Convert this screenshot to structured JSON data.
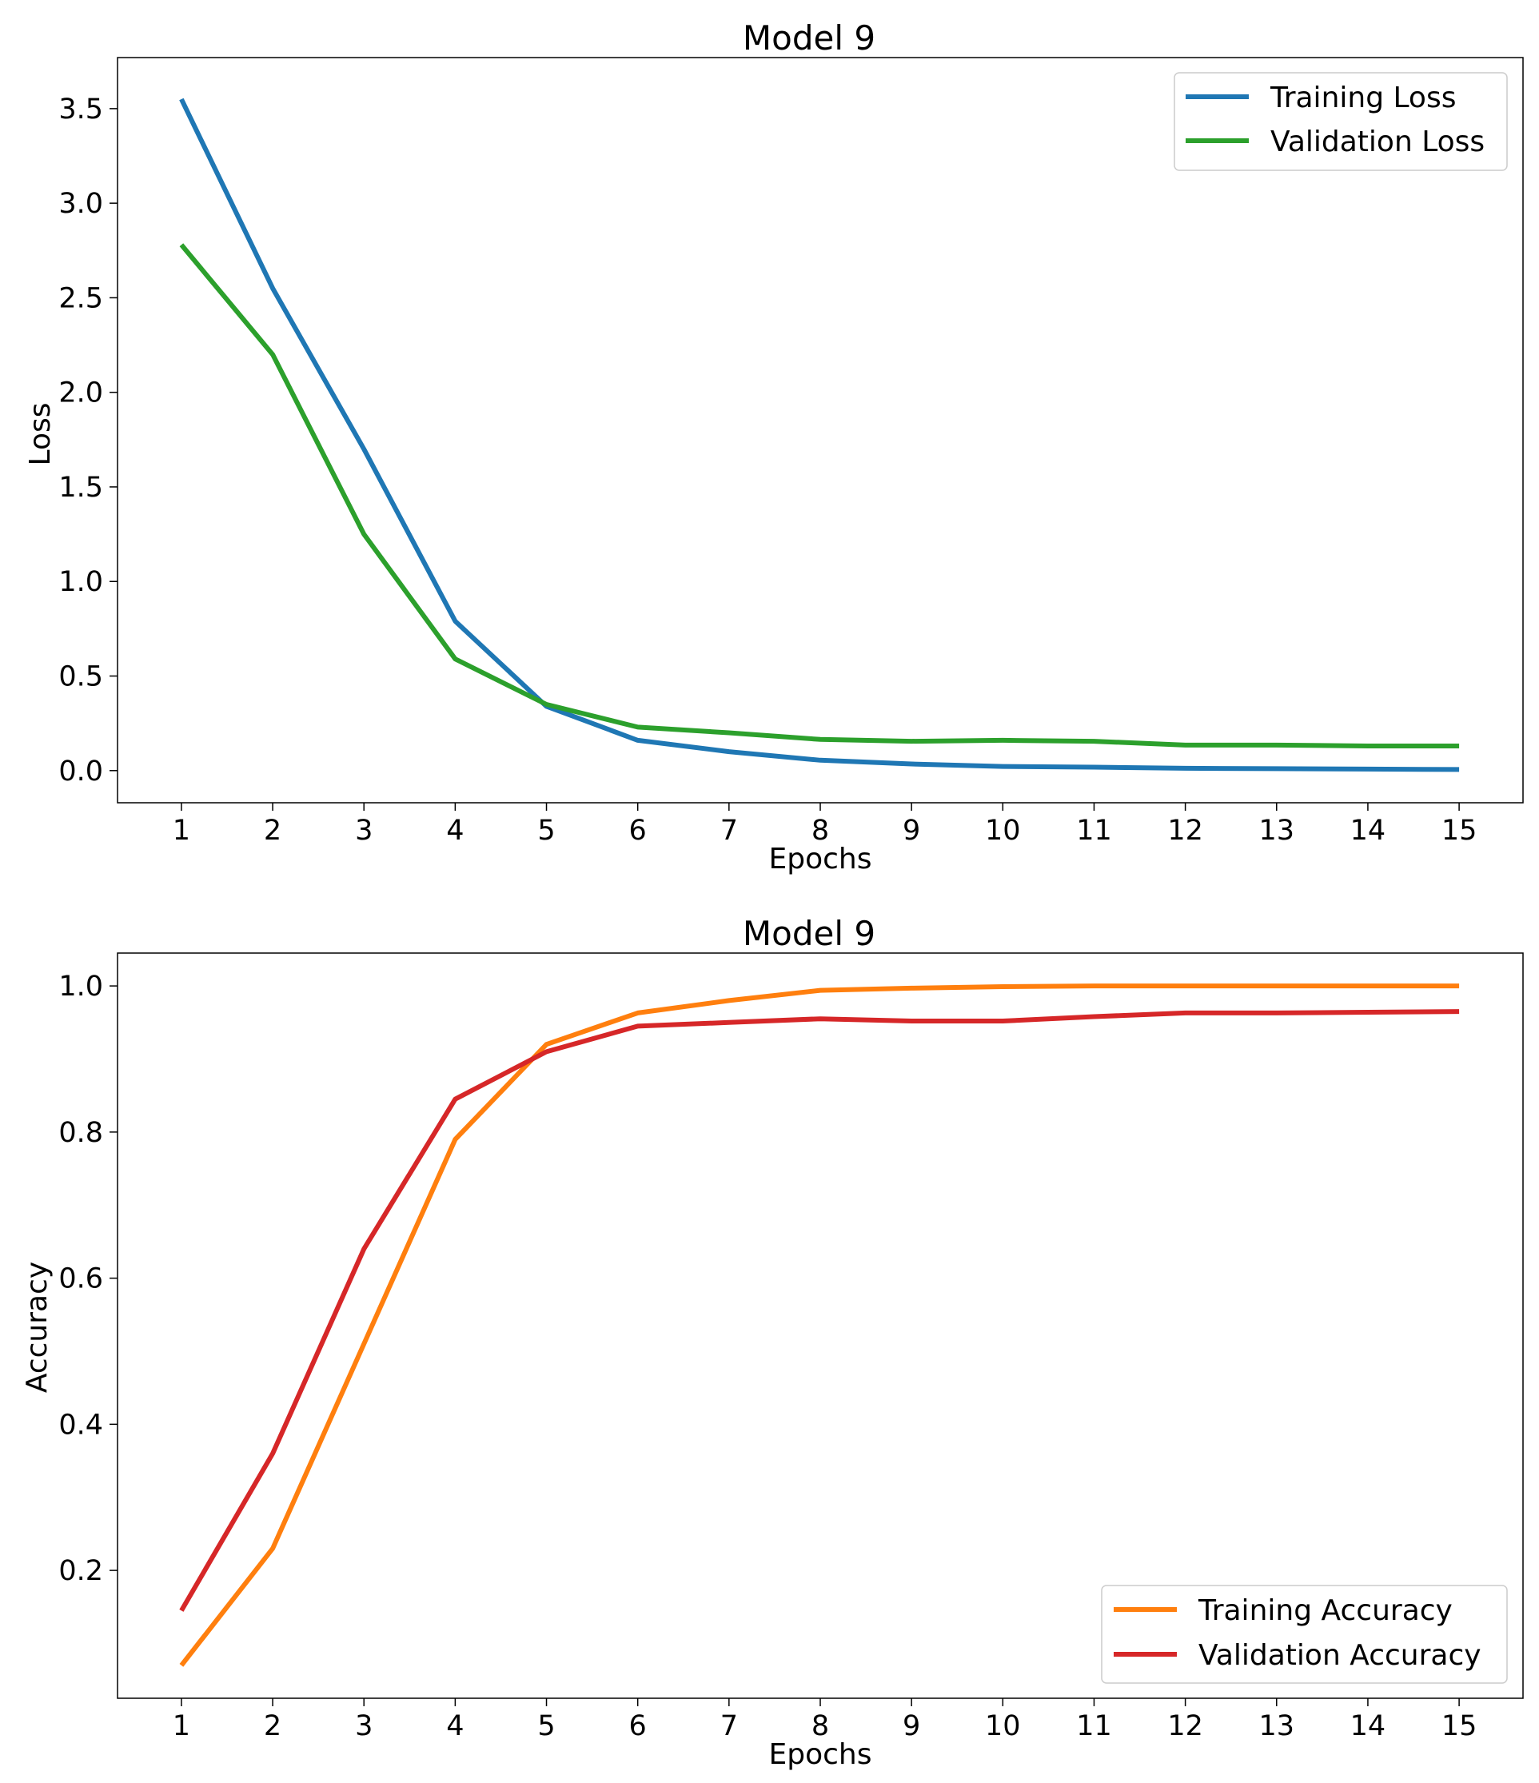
{
  "chart_data": [
    {
      "type": "line",
      "title": "Model 9",
      "xlabel": "Epochs",
      "ylabel": "Loss",
      "x": [
        1,
        2,
        3,
        4,
        5,
        6,
        7,
        8,
        9,
        10,
        11,
        12,
        13,
        14,
        15
      ],
      "xlim": [
        0.3,
        15.7
      ],
      "ylim": [
        -0.17,
        3.77
      ],
      "yticks": [
        0.0,
        0.5,
        1.0,
        1.5,
        2.0,
        2.5,
        3.0,
        3.5
      ],
      "ytick_labels": [
        "0.0",
        "0.5",
        "1.0",
        "1.5",
        "2.0",
        "2.5",
        "3.0",
        "3.5"
      ],
      "grid": false,
      "legend_position": "top-right",
      "series": [
        {
          "name": "Training Loss",
          "color": "#1f77b4",
          "values": [
            3.55,
            2.55,
            1.7,
            0.79,
            0.34,
            0.16,
            0.1,
            0.055,
            0.035,
            0.022,
            0.018,
            0.012,
            0.01,
            0.008,
            0.006
          ]
        },
        {
          "name": "Validation Loss",
          "color": "#2ca02c",
          "values": [
            2.78,
            2.2,
            1.25,
            0.59,
            0.35,
            0.23,
            0.2,
            0.165,
            0.155,
            0.16,
            0.155,
            0.135,
            0.135,
            0.13,
            0.13
          ]
        }
      ]
    },
    {
      "type": "line",
      "title": "Model 9",
      "xlabel": "Epochs",
      "ylabel": "Accuracy",
      "x": [
        1,
        2,
        3,
        4,
        5,
        6,
        7,
        8,
        9,
        10,
        11,
        12,
        13,
        14,
        15
      ],
      "xlim": [
        0.3,
        15.7
      ],
      "ylim": [
        0.025,
        1.045
      ],
      "yticks": [
        0.2,
        0.4,
        0.6,
        0.8,
        1.0
      ],
      "ytick_labels": [
        "0.2",
        "0.4",
        "0.6",
        "0.8",
        "1.0"
      ],
      "grid": false,
      "legend_position": "bottom-right",
      "series": [
        {
          "name": "Training Accuracy",
          "color": "#ff7f0e",
          "values": [
            0.07,
            0.23,
            0.51,
            0.79,
            0.92,
            0.963,
            0.98,
            0.994,
            0.997,
            0.999,
            1.0,
            1.0,
            1.0,
            1.0,
            1.0
          ]
        },
        {
          "name": "Validation Accuracy",
          "color": "#d62728",
          "values": [
            0.145,
            0.36,
            0.64,
            0.845,
            0.91,
            0.945,
            0.95,
            0.955,
            0.952,
            0.952,
            0.958,
            0.963,
            0.963,
            0.964,
            0.965
          ]
        }
      ]
    }
  ]
}
